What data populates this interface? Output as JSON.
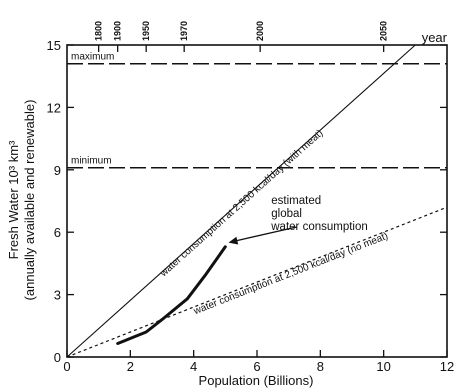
{
  "chart_data": {
    "type": "line",
    "xlabel": "Population (Billions)",
    "ylabel": "Fresh Water 10³ km³",
    "ylabel_sub": "(annually available and renewable)",
    "xlim": [
      0,
      12
    ],
    "ylim": [
      0,
      15
    ],
    "x_ticks": [
      0,
      2,
      4,
      6,
      8,
      10,
      12
    ],
    "y_ticks": [
      0,
      3,
      6,
      9,
      12,
      15
    ],
    "x_tick_labels": [
      "0",
      "2",
      "4",
      "6",
      "8",
      "10",
      "12"
    ],
    "y_tick_labels": [
      "0",
      "3",
      "6",
      "9",
      "12",
      "15"
    ],
    "top_axis": {
      "label": "year",
      "ticks": [
        {
          "label": "1800",
          "x": 1.0
        },
        {
          "label": "1900",
          "x": 1.6
        },
        {
          "label": "1950",
          "x": 2.5
        },
        {
          "label": "1970",
          "x": 3.7
        },
        {
          "label": "2000",
          "x": 6.1
        },
        {
          "label": "2050",
          "x": 10.0
        }
      ]
    },
    "reference_lines": [
      {
        "label": "maximum",
        "y": 14.1
      },
      {
        "label": "minimum",
        "y": 9.1
      }
    ],
    "series": [
      {
        "name": "water consumption at 2,500 kcal/day (with meat)",
        "style": "solid-thin",
        "points": [
          [
            0,
            0
          ],
          [
            11.0,
            15.0
          ]
        ]
      },
      {
        "name": "water consumption at 2,500 kcal/day (no meat)",
        "style": "dashed",
        "points": [
          [
            0,
            0
          ],
          [
            12.0,
            7.2
          ]
        ]
      },
      {
        "name": "estimated global water consumption",
        "style": "solid-thick",
        "points": [
          [
            1.6,
            0.65
          ],
          [
            2.5,
            1.2
          ],
          [
            3.0,
            1.8
          ],
          [
            3.8,
            2.8
          ],
          [
            4.4,
            4.0
          ],
          [
            5.0,
            5.3
          ]
        ]
      }
    ],
    "annotation": {
      "lines": [
        "estimated",
        "global",
        "water consumption"
      ],
      "arrow_target": [
        5.1,
        5.5
      ]
    },
    "grid": false
  }
}
